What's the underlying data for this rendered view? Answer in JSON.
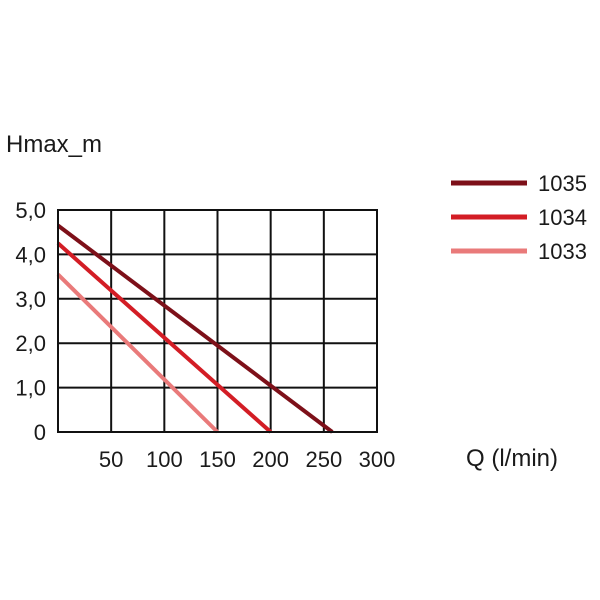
{
  "chart_data": {
    "type": "line",
    "title": "",
    "ylabel": "Hmax_m",
    "xlabel": "Q (l/min)",
    "xlim": [
      0,
      300
    ],
    "ylim": [
      0,
      5
    ],
    "x_ticks": [
      50,
      100,
      150,
      200,
      250,
      300
    ],
    "x_tick_labels": [
      "50",
      "100",
      "150",
      "200",
      "250",
      "300"
    ],
    "y_ticks": [
      0,
      1,
      2,
      3,
      4,
      5
    ],
    "y_tick_labels": [
      "0",
      "1,0",
      "2,0",
      "3,0",
      "4,0",
      "5,0"
    ],
    "grid": true,
    "legend_position": "top-right",
    "series": [
      {
        "name": "1035",
        "color": "#7d1019",
        "points": [
          [
            0,
            4.65
          ],
          [
            258,
            0
          ]
        ]
      },
      {
        "name": "1034",
        "color": "#d31d25",
        "points": [
          [
            0,
            4.25
          ],
          [
            200,
            0
          ]
        ]
      },
      {
        "name": "1033",
        "color": "#e97a7a",
        "points": [
          [
            0,
            3.55
          ],
          [
            150,
            0
          ]
        ]
      }
    ]
  }
}
